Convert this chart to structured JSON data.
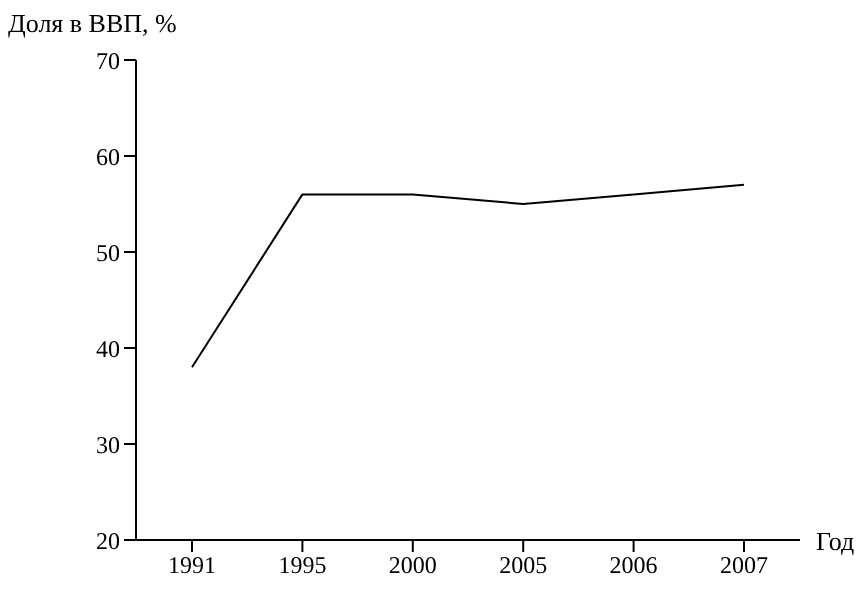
{
  "chart_data": {
    "type": "line",
    "ylabel": "Доля в ВВП, %",
    "xlabel": "Год",
    "categories": [
      "1991",
      "1995",
      "2000",
      "2005",
      "2006",
      "2007"
    ],
    "series": [
      {
        "color": "#000000",
        "values": [
          38,
          56,
          56,
          55,
          56,
          57
        ]
      }
    ],
    "ylim": [
      20,
      70
    ],
    "yticks": [
      20,
      30,
      40,
      50,
      60,
      70
    ],
    "grid": false,
    "legend": false,
    "marker": "none",
    "line_style": "solid"
  }
}
